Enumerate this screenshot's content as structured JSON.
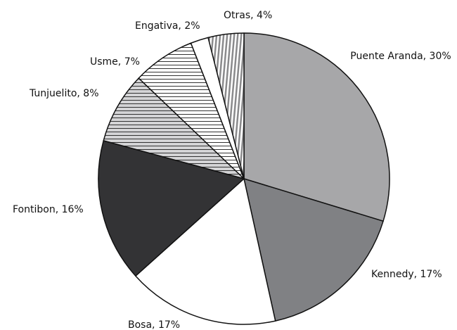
{
  "chart_data": {
    "type": "pie",
    "values": [
      30,
      17,
      17,
      16,
      8,
      7,
      2,
      4
    ],
    "value_labels": [
      "Puente Aranda, 30%",
      "Kennedy, 17%",
      "Bosa, 17%",
      "Fontibon, 16%",
      "Tunjuelito, 8%",
      "Usme, 7%",
      "Engativa, 2%",
      "Otras, 4%"
    ],
    "colors": [
      "#a7a7a9",
      "#808184",
      "#ffffff",
      "#333335",
      "#d4d4d6",
      "#ffffff",
      "#ffffff",
      "#8a8a8c"
    ]
  }
}
